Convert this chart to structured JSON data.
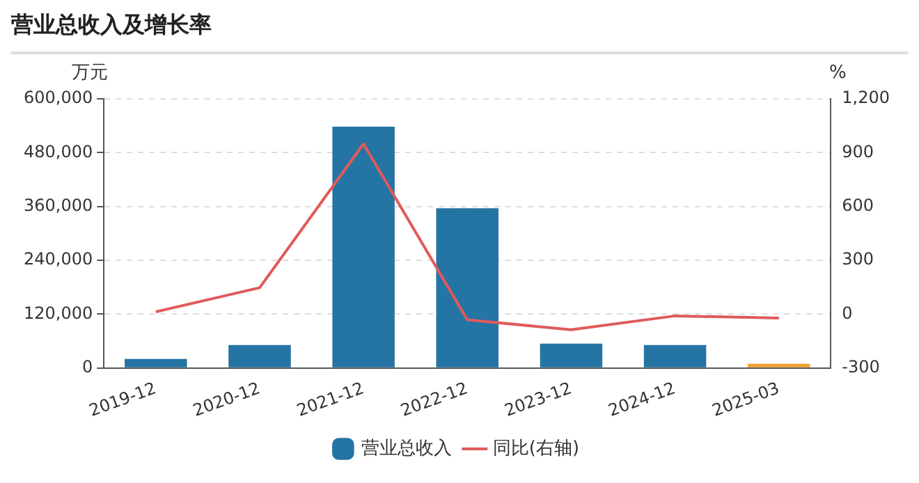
{
  "chart_data": {
    "type": "bar",
    "title": "营业总收入及增长率",
    "ylabel": "万元",
    "y2label": "%",
    "categories": [
      "2019-12",
      "2020-12",
      "2021-12",
      "2022-12",
      "2023-12",
      "2024-12",
      "2025-03"
    ],
    "series": [
      {
        "name": "营业总收入",
        "color": "#2474a4",
        "colors": [
          "#2474a4",
          "#2474a4",
          "#2474a4",
          "#2474a4",
          "#2474a4",
          "#2474a4",
          "#f0a030"
        ],
        "values": [
          20000,
          51000,
          538000,
          356000,
          54000,
          51000,
          9000
        ]
      },
      {
        "name": "同比(右轴)",
        "type": "line",
        "axis": "y2",
        "color": "#e05a5a",
        "values": [
          13,
          147,
          949,
          -32,
          -87,
          -10,
          -22
        ]
      }
    ],
    "ylim": [
      0,
      600000
    ],
    "yticks": [
      {
        "value": 0,
        "label": "0"
      },
      {
        "value": 120000,
        "label": "120,000"
      },
      {
        "value": 240000,
        "label": "240,000"
      },
      {
        "value": 360000,
        "label": "360,000"
      },
      {
        "value": 480000,
        "label": "480,000"
      },
      {
        "value": 600000,
        "label": "600,000"
      }
    ],
    "y2lim": [
      -300,
      1200
    ],
    "y2ticks": [
      -300,
      0,
      300,
      600,
      900,
      {
        "value": 1200,
        "label": "1,200"
      }
    ],
    "grid": "y",
    "legend": "bottom",
    "marker": "none",
    "line_style": "solid"
  }
}
